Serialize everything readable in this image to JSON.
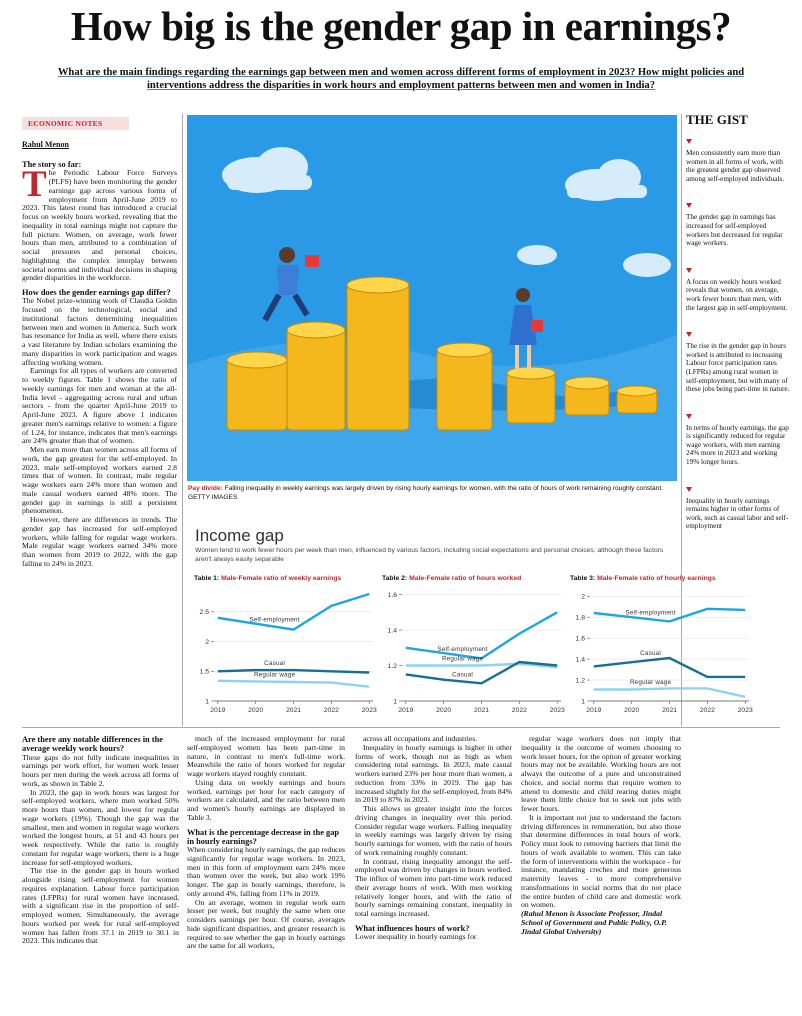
{
  "header": {
    "headline": "How big is the gender gap in earnings?",
    "deck": "What are the main findings regarding the earnings gap between men and women across different forms of employment in 2023? How might policies and interventions address the disparities in work hours and employment patterns between men and women in India?",
    "section_tag": "ECONOMIC NOTES",
    "byline": "Rahul Menon"
  },
  "article": {
    "columns": [
      [
        {
          "heading": "The story so far:"
        },
        {
          "text": "The Periodic Labour Force Surveys (PLFS) have been monitoring the gender earnings gap across various forms of employment from April-June 2019 to 2023. This latest round has introduced a crucial focus on weekly hours worked, revealing that the inequality in total earnings might not capture the full picture. Women, on average, work fewer hours than men, attributed to a combination of social pressures and personal choices, highlighting the complex interplay between societal norms and individual decisions in shaping gender disparities in the workforce."
        },
        {
          "heading": "How does the gender earnings gap differ?"
        },
        {
          "text": "The Nobel prize-winning work of Claudia Goldin focused on the technological, social and institutional factors determining inequalities between men and women in America. Such work has resonance for India as well, where there exists a vast literature by Indian scholars examining the many disparities in work participation and wages affecting working women."
        },
        {
          "text": "Earnings for all types of workers are converted to weekly figures. Table 1 shows the ratio of weekly earnings for men and woman at the all-India level - aggregating across rural and urban sectors - from the quarter April-June 2019 to April-June 2023. A figure above 1 indicates greater men's earnings relative to women: a figure of 1.24, for instance, indicates that men's earnings are 24% greater than that of women."
        },
        {
          "text": "Men earn more than women across all forms of work, the gap greatest for the self-employed. In 2023, male self-employed workers earned 2.8 times that of women. In contrast, male regular wage workers earn 24% more than women and male casual workers earned 48% more. The gender gap in earnings is still a persistent phenomenon."
        },
        {
          "text": "However, there are differences in trends. The gender gap has increased for self-employed workers, while falling for regular wage workers. Male regular wage workers earned 34% more than women from 2019 to 2022, with the gap falling to 24% in 2023."
        }
      ],
      [
        {
          "heading": "Are there any notable differences in the average weekly work hours?"
        },
        {
          "text": "These gaps do not fully indicate inequalities in earnings per work effort, for women work lesser hours per men during the week across all forms of work, as shown in Table 2."
        },
        {
          "text": "In 2023, the gap in work hours was largest for self-employed workers, where men worked 50% more hours than women, and lowest for regular wage workers (19%). Though the gap was the smallest, men and women in regular wage workers worked the longest hours, at 51 and 43 hours per week respectively. While the ratio is roughly constant for regular wage workers, there is a huge increase for self-employed workers."
        },
        {
          "text": "The rise in the gender gap in hours worked alongside rising self-employment for women requires explanation. Labour force participation rates (LFPRs) for rural women have increased, with a significant rise in the proportion of self-employed women. Simultaneously, the average hours worked per week for rural self-employed women has fallen from 37.1 in 2019 to 30.1 in 2023. This indicates that"
        }
      ],
      [
        {
          "text": "much of the increased employment for rural self-employed women has been part-time in nature, in contrast to men's full-time work. Meanwhile the ratio of hours worked for regular wage workers stayed roughly constant."
        },
        {
          "text": "Using data on weekly earnings and hours worked, earnings per hour for each category of workers are calculated, and the ratio between men and women's hourly earnings are displayed in Table 3."
        },
        {
          "heading": "What is the percentage decrease in the gap in hourly earnings?"
        },
        {
          "text": "When considering hourly earnings, the gap reduces significantly for regular wage workers. In 2023, men in this form of employment earn 24% more than women over the week, but also work 19% longer. The gap in hourly earnings, therefore, is only around 4%, falling from 11% in 2019."
        },
        {
          "text": "On an average, women in regular work earn lesser per week, but roughly the same when one considers earnings per hour. Of course, averages hide significant disparities, and greater research is required to see whether the gap in hourly earnings are the same for all workers,"
        }
      ],
      [
        {
          "text": "across all occupations and industries."
        },
        {
          "text": "Inequality in hourly earnings is higher in other forms of work, though not as high as when considering total earnings. In 2023, male casual workers earned 23% per hour more than women, a reduction from 33% in 2019. The gap has increased slightly for the self-employed, from 84% in 2019 to 87% in 2023."
        },
        {
          "text": "This allows us greater insight into the forces driving changes in inequality over this period. Consider regular wage workers. Falling inequality in weekly earnings was largely driven by rising hourly earnings for women, with the ratio of hours of work remaining roughly constant."
        },
        {
          "text": "In contrast, rising inequality amongst the self-employed was driven by changes in hours worked. The influx of women into part-time work reduced their average hours of work. With men working relatively longer hours, and with the ratio of hourly earnings remaining constant, inequality in total earnings increased."
        },
        {
          "heading": "What influences hours of work?"
        },
        {
          "text": "Lower inequality in hourly earnings for"
        }
      ],
      [
        {
          "text": "regular wage workers does not imply that inequality is the outcome of women choosing to work lesser hours, for the option of greater working hours may not be available. Working hours are not always the outcome of a pure and unconstrained choice, and social norms that require women to attend to domestic and child rearing duties might leave them little choice but to seek out jobs with fewer hours."
        },
        {
          "text": "It is important not just to understand the factors driving differences in remuneration, but also those that determine differences in total hours of work. Policy must look to removing barriers that limit the hours of work available to women. This can take the form of interventions within the workspace - for instance, mandating creches and more generous maternity leaves - to more comprehensive transformations in social norms that do not place the entire burden of child care and domestic work on women."
        },
        {
          "credit": "(Rahul Menon is Associate Professor, Jindal School of Government and Public Policy, O.P. Jindal Global University)"
        }
      ]
    ]
  },
  "image": {
    "caption_label": "Pay divide:",
    "caption": "Falling inequality in weekly earnings was largely driven by rising hourly earnings for women, with the ratio of hours of work remaining roughly constant. GETTY IMAGES"
  },
  "gist": {
    "title": "THE GIST",
    "items": [
      "Men consistently earn more than women in all forms of work, with the greatest gender gap observed among self-employed individuals.",
      "The gender gap in earnings has increased for self-employed workers but decreased for regular wage workers.",
      "A focus on weekly hours worked reveals that women, on average, work fewer hours than men, with the largest gap in self-employment.",
      "The rise in the gender gap in hours worked is attributed to increasing Labour force participation rates (LFPRs) among rural women in self-employment, but with many of these jobs being part-time in nature.",
      "In terms of hourly earnings, the gap is significantly reduced for regular wage workers, with men earning 24% more in 2023 and working 19% longer hours.",
      "Inequality in hourly earnings remains higher in other forms of work, such as casual labor and self-employment"
    ]
  },
  "infographic": {
    "title": "Income gap",
    "subtitle": "Women tend to work fewer hours per week than men, influenced by various factors, including social expectations and personal choices, although these factors aren't always easily separable",
    "charts": [
      {
        "type": "line",
        "label": "Table 1:",
        "title": "Male-Female ratio of weekly earnings",
        "x": [
          2019,
          2020,
          2021,
          2022,
          2023
        ],
        "xlim": [
          2018.9,
          2023.1
        ],
        "xticks": [
          2019,
          2020,
          2021,
          2022,
          2023
        ],
        "ylim": [
          1,
          2.85
        ],
        "yticks": [
          1,
          1.5,
          2,
          2.5
        ],
        "grid": true,
        "series": [
          {
            "name": "Self-employment",
            "color": "#1ea6e0",
            "values": [
              2.4,
              2.3,
              2.2,
              2.6,
              2.8
            ]
          },
          {
            "name": "Casual",
            "color": "#16718f",
            "values": [
              1.5,
              1.52,
              1.52,
              1.5,
              1.48
            ]
          },
          {
            "name": "Regular wage",
            "color": "#8ed2ee",
            "values": [
              1.34,
              1.33,
              1.32,
              1.31,
              1.24
            ]
          }
        ]
      },
      {
        "type": "line",
        "label": "Table 2:",
        "title": "Male-Female ratio of hours worked",
        "x": [
          2019,
          2020,
          2021,
          2022,
          2023
        ],
        "xlim": [
          2018.9,
          2023.1
        ],
        "xticks": [
          2019,
          2020,
          2021,
          2022,
          2023
        ],
        "ylim": [
          1,
          1.62
        ],
        "yticks": [
          1,
          1.2,
          1.4,
          1.6
        ],
        "grid": true,
        "series": [
          {
            "name": "Self-employment",
            "color": "#1ea6e0",
            "values": [
              1.3,
              1.27,
              1.24,
              1.38,
              1.5
            ]
          },
          {
            "name": "Regular wage",
            "color": "#8ed2ee",
            "values": [
              1.2,
              1.2,
              1.2,
              1.21,
              1.19
            ]
          },
          {
            "name": "Casual",
            "color": "#16718f",
            "values": [
              1.15,
              1.12,
              1.1,
              1.22,
              1.2
            ]
          }
        ]
      },
      {
        "type": "line",
        "label": "Table 3:",
        "title": "Male-Female ratio of hourly earnings",
        "x": [
          2019,
          2020,
          2021,
          2022,
          2023
        ],
        "xlim": [
          2018.9,
          2023.1
        ],
        "xticks": [
          2019,
          2020,
          2021,
          2022,
          2023
        ],
        "ylim": [
          1,
          2.05
        ],
        "yticks": [
          1,
          1.2,
          1.4,
          1.6,
          1.8,
          2
        ],
        "grid": true,
        "series": [
          {
            "name": "Self-employment",
            "color": "#1ea6e0",
            "values": [
              1.84,
              1.8,
              1.76,
              1.88,
              1.87
            ]
          },
          {
            "name": "Casual",
            "color": "#16718f",
            "values": [
              1.33,
              1.37,
              1.41,
              1.23,
              1.23
            ]
          },
          {
            "name": "Regular wage",
            "color": "#8ed2ee",
            "values": [
              1.11,
              1.11,
              1.12,
              1.12,
              1.04
            ]
          }
        ]
      }
    ]
  }
}
